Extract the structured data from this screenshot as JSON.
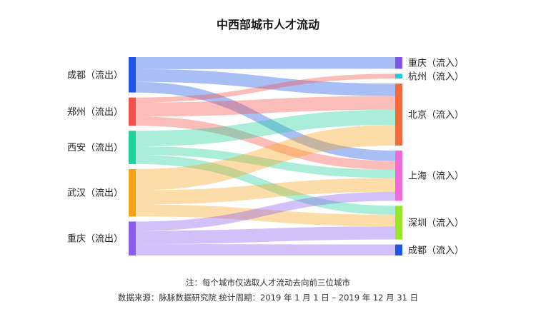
{
  "chart_data": {
    "type": "sankey",
    "title": "中西部城市人才流动",
    "sources": [
      {
        "name": "成都（流出）",
        "color": "#1f54e8"
      },
      {
        "name": "郑州（流出）",
        "color": "#f5514a"
      },
      {
        "name": "西安（流出）",
        "color": "#1fd39b"
      },
      {
        "name": "武汉（流出）",
        "color": "#f7a21b"
      },
      {
        "name": "重庆（流出）",
        "color": "#8a5cf0"
      }
    ],
    "targets": [
      {
        "name": "重庆（流入）",
        "color": "#7f56e8"
      },
      {
        "name": "杭州（流入）",
        "color": "#1ec9e6"
      },
      {
        "name": "北京（流入）",
        "color": "#f56a3a"
      },
      {
        "name": "上海（流入）",
        "color": "#f06ad8"
      },
      {
        "name": "深圳（流入）",
        "color": "#98e62a"
      },
      {
        "name": "成都（流入）",
        "color": "#1f54e8"
      }
    ],
    "links": [
      {
        "source": "成都（流出）",
        "target": "重庆（流入）",
        "value": 17
      },
      {
        "source": "成都（流出）",
        "target": "北京（流入）",
        "value": 18
      },
      {
        "source": "成都（流出）",
        "target": "上海（流入）",
        "value": 15
      },
      {
        "source": "郑州（流出）",
        "target": "杭州（流入）",
        "value": 7
      },
      {
        "source": "郑州（流出）",
        "target": "北京（流入）",
        "value": 20
      },
      {
        "source": "郑州（流出）",
        "target": "上海（流入）",
        "value": 13
      },
      {
        "source": "西安（流出）",
        "target": "北京（流入）",
        "value": 22
      },
      {
        "source": "西安（流出）",
        "target": "上海（流入）",
        "value": 12
      },
      {
        "source": "西安（流出）",
        "target": "深圳（流入）",
        "value": 13
      },
      {
        "source": "武汉（流出）",
        "target": "北京（流入）",
        "value": 30
      },
      {
        "source": "武汉（流出）",
        "target": "上海（流入）",
        "value": 20
      },
      {
        "source": "武汉（流出）",
        "target": "深圳（流入）",
        "value": 17
      },
      {
        "source": "重庆（流出）",
        "target": "上海（流入）",
        "value": 13
      },
      {
        "source": "重庆（流出）",
        "target": "深圳（流入）",
        "value": 19
      },
      {
        "source": "重庆（流出）",
        "target": "成都（流入）",
        "value": 16
      }
    ],
    "notes": [
      "注：每个城市仅选取人才流动去向前三位城市",
      "数据来源：脉脉数据研究院     统计周期：2019 年 1 月 1 日 – 2019 年 12 月 31 日"
    ]
  }
}
